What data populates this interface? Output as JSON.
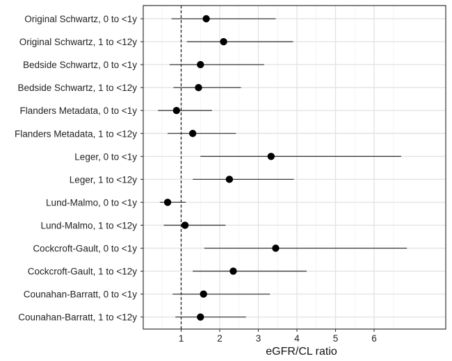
{
  "chart_data": {
    "type": "scatter",
    "subtype": "forest-plot",
    "xlabel": "eGFR/CL ratio",
    "xticks": [
      1,
      2,
      3,
      4,
      5,
      6
    ],
    "xlim": [
      0,
      6.85
    ],
    "reference_line": 1,
    "grid": true,
    "rows": [
      {
        "label": "Original Schwartz, 0 to <1y",
        "estimate": 1.65,
        "lower": 0.75,
        "upper": 3.45
      },
      {
        "label": "Original Schwartz, 1 to <12y",
        "estimate": 2.1,
        "lower": 1.15,
        "upper": 3.9
      },
      {
        "label": "Bedside Schwartz, 0 to <1y",
        "estimate": 1.5,
        "lower": 0.7,
        "upper": 3.15
      },
      {
        "label": "Bedside Schwartz, 1 to <12y",
        "estimate": 1.45,
        "lower": 0.8,
        "upper": 2.55
      },
      {
        "label": "Flanders Metadata, 0 to <1y",
        "estimate": 0.88,
        "lower": 0.4,
        "upper": 1.8
      },
      {
        "label": "Flanders Metadata, 1 to <12y",
        "estimate": 1.3,
        "lower": 0.65,
        "upper": 2.42
      },
      {
        "label": "Leger, 0 to <1y",
        "estimate": 3.33,
        "lower": 1.5,
        "upper": 6.7
      },
      {
        "label": "Leger, 1 to <12y",
        "estimate": 2.25,
        "lower": 1.3,
        "upper": 3.92
      },
      {
        "label": "Lund-Malmo, 0 to <1y",
        "estimate": 0.65,
        "lower": 0.45,
        "upper": 1.12
      },
      {
        "label": "Lund-Malmo, 1 to <12y",
        "estimate": 1.1,
        "lower": 0.55,
        "upper": 2.15
      },
      {
        "label": "Cockcroft-Gault, 0 to <1y",
        "estimate": 3.45,
        "lower": 1.6,
        "upper": 6.85
      },
      {
        "label": "Cockcroft-Gault, 1 to <12y",
        "estimate": 2.35,
        "lower": 1.3,
        "upper": 4.25
      },
      {
        "label": "Counahan-Barratt, 0 to <1y",
        "estimate": 1.58,
        "lower": 0.78,
        "upper": 3.3
      },
      {
        "label": "Counahan-Barratt, 1 to <12y",
        "estimate": 1.5,
        "lower": 0.85,
        "upper": 2.68
      }
    ]
  }
}
